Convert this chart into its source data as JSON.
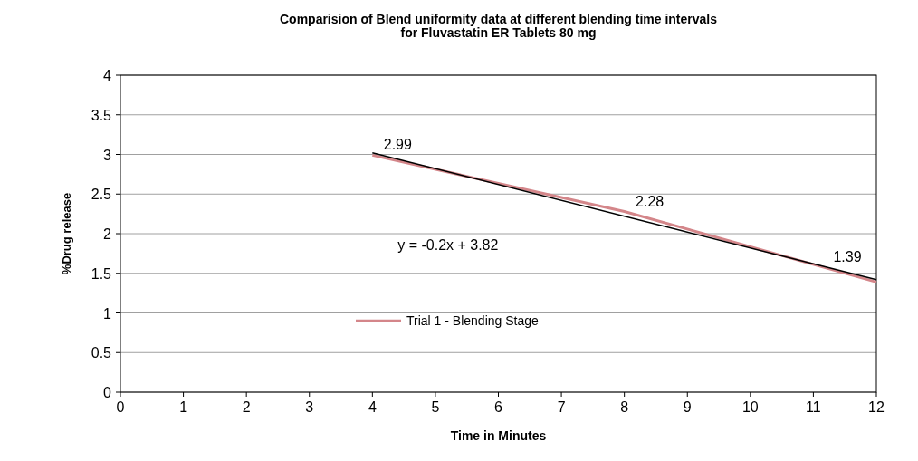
{
  "chart_data": {
    "type": "line",
    "title": "Comparision of Blend uniformity data  at different blending  time intervals\nfor Fluvastatin ER Tablets 80 mg",
    "xlabel": "Time in Minutes",
    "ylabel": "%Drug release",
    "series": [
      {
        "name": "Trial 1 - Blending Stage",
        "color": "#d4868a",
        "x": [
          4,
          8,
          12
        ],
        "values": [
          2.99,
          2.28,
          1.39
        ],
        "value_labels": [
          "2.99",
          "2.28",
          "1.39"
        ]
      },
      {
        "color": "#000000",
        "x": [
          4,
          12
        ],
        "values": [
          3.02,
          1.42
        ]
      }
    ],
    "annotations": [
      "y = -0.2x + 3.82"
    ],
    "xlim": [
      0,
      12
    ],
    "xticks": [
      0,
      1,
      2,
      3,
      4,
      5,
      6,
      7,
      8,
      9,
      10,
      11,
      12
    ],
    "ylim": [
      0,
      4
    ],
    "yticks": [
      0,
      0.5,
      1,
      1.5,
      2,
      2.5,
      3,
      3.5,
      4
    ],
    "grid": "y",
    "legend": "left",
    "marker": "none",
    "line_style": "solid"
  }
}
